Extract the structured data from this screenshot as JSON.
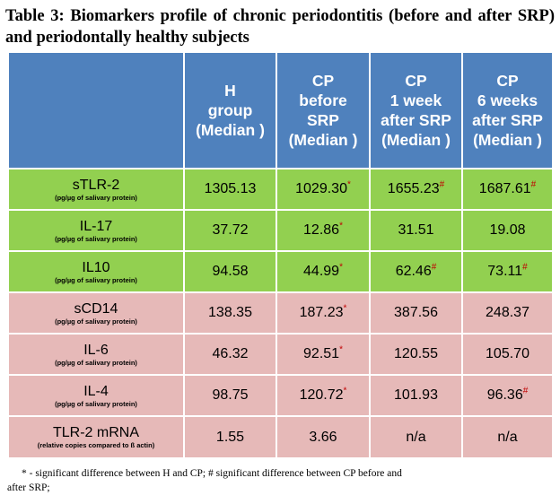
{
  "title": "Table 3: Biomarkers profile of chronic periodontitis (before and after SRP) and periodontally healthy subjects",
  "header": {
    "col1": [
      "H",
      "group",
      "(Median )"
    ],
    "col2": [
      "CP",
      "before",
      "SRP",
      "(Median )"
    ],
    "col3": [
      "CP",
      "1 week",
      "after SRP",
      "(Median )"
    ],
    "col4": [
      "CP",
      "6 weeks",
      "after SRP",
      "(Median )"
    ]
  },
  "colors": {
    "header": "#4f81bd",
    "green": "#92d050",
    "pink": "#e6b9b8",
    "mark": "#c00000"
  },
  "rows": [
    {
      "name": "sTLR-2",
      "unit": "(pg/µg of salivary protein)",
      "h": "1305.13",
      "cp_before": "1029.30",
      "cp_before_mark": "*",
      "cp_1wk": "1655.23",
      "cp_1wk_mark": "#",
      "cp_6wk": "1687.61",
      "cp_6wk_mark": "#"
    },
    {
      "name": "IL-17",
      "unit": "(pg/µg of salivary  protein)",
      "h": "37.72",
      "cp_before": "12.86",
      "cp_before_mark": "*",
      "cp_1wk": "31.51",
      "cp_1wk_mark": "",
      "cp_6wk": "19.08",
      "cp_6wk_mark": ""
    },
    {
      "name": "IL10",
      "unit": "(pg/µg of salivary protein)",
      "h": "94.58",
      "cp_before": "44.99",
      "cp_before_mark": "*",
      "cp_1wk": "62.46",
      "cp_1wk_mark": "#",
      "cp_6wk": "73.11",
      "cp_6wk_mark": "#"
    },
    {
      "name": "sCD14",
      "unit": "(pg/µg of salivary protein)",
      "h": "138.35",
      "cp_before": "187.23",
      "cp_before_mark": "*",
      "cp_1wk": "387.56",
      "cp_1wk_mark": "",
      "cp_6wk": "248.37",
      "cp_6wk_mark": ""
    },
    {
      "name": "IL-6",
      "unit": "(pg/µg of salivary  protein)",
      "h": "46.32",
      "cp_before": "92.51",
      "cp_before_mark": "*",
      "cp_1wk": "120.55",
      "cp_1wk_mark": "",
      "cp_6wk": "105.70",
      "cp_6wk_mark": ""
    },
    {
      "name": "IL-4",
      "unit": "(pg/µg of salivary protein)",
      "h": "98.75",
      "cp_before": "120.72",
      "cp_before_mark": "*",
      "cp_1wk": "101.93",
      "cp_1wk_mark": "",
      "cp_6wk": "96.36",
      "cp_6wk_mark": "#"
    },
    {
      "name": "TLR-2 mRNA",
      "unit": "(relative copies compared to ß actin)",
      "h": "1.55",
      "cp_before": "3.66",
      "cp_before_mark": "",
      "cp_1wk": "n/a",
      "cp_1wk_mark": "",
      "cp_6wk": "n/a",
      "cp_6wk_mark": ""
    }
  ],
  "footnote": {
    "line1": "* - significant difference between H and CP; # significant difference between CP before and",
    "line2": "after SRP;"
  }
}
